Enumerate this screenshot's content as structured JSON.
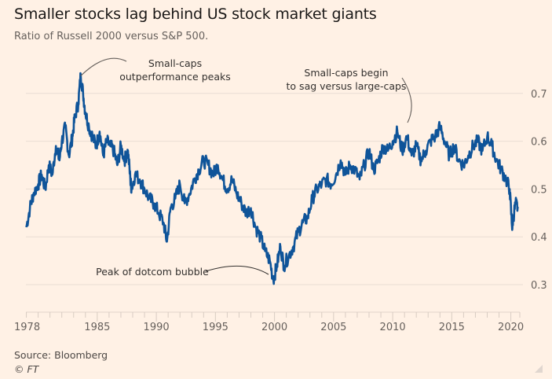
{
  "header": {
    "title": "Smaller stocks lag behind US stock market giants",
    "subtitle": "Ratio of Russell 2000 versus S&P 500."
  },
  "footer": {
    "source": "Source: Bloomberg",
    "copyright": "© FT"
  },
  "colors": {
    "background": "#fff1e5",
    "line": "#0f5499",
    "grid": "#e9ddd3",
    "annotation": "#33302e"
  },
  "chart_data": {
    "type": "line",
    "title": "Smaller stocks lag behind US stock market giants",
    "subtitle": "Ratio of Russell 2000 versus S&P 500.",
    "xlabel": "",
    "ylabel": "",
    "xlim": [
      1978,
      2020.8
    ],
    "ylim": [
      0.3,
      0.75
    ],
    "grid": true,
    "legend": "none",
    "y_axis_position": "right",
    "x_ticks": [
      1978,
      1985,
      1990,
      1995,
      2000,
      2005,
      2010,
      2015,
      2020
    ],
    "x_tick_labels": [
      "1978",
      "1985",
      "1990",
      "1995",
      "2000",
      "2005",
      "2010",
      "2015",
      "2020"
    ],
    "y_ticks": [
      0.3,
      0.4,
      0.5,
      0.6,
      0.7
    ],
    "y_tick_labels": [
      "0.3",
      "0.4",
      "0.5",
      "0.6",
      "0.7"
    ],
    "series": [
      {
        "name": "Russell 2000 / S&P 500",
        "x": [
          1979.0,
          1979.3,
          1979.6,
          1980.0,
          1980.3,
          1980.6,
          1980.9,
          1981.2,
          1981.5,
          1981.8,
          1982.0,
          1982.3,
          1982.6,
          1982.9,
          1983.1,
          1983.4,
          1983.6,
          1983.8,
          1984.0,
          1984.3,
          1984.6,
          1984.9,
          1985.2,
          1985.5,
          1985.8,
          1986.1,
          1986.4,
          1986.7,
          1987.0,
          1987.3,
          1987.6,
          1987.8,
          1987.9,
          1988.2,
          1988.6,
          1989.0,
          1989.4,
          1989.8,
          1990.2,
          1990.6,
          1990.9,
          1991.2,
          1991.6,
          1992.0,
          1992.4,
          1992.8,
          1993.2,
          1993.6,
          1994.0,
          1994.4,
          1994.8,
          1995.2,
          1995.6,
          1996.0,
          1996.4,
          1996.8,
          1997.2,
          1997.6,
          1998.0,
          1998.4,
          1998.8,
          1999.2,
          1999.6,
          1999.9,
          2000.2,
          2000.5,
          2000.8,
          2001.2,
          2001.6,
          2002.0,
          2002.4,
          2002.8,
          2003.2,
          2003.6,
          2004.0,
          2004.4,
          2004.8,
          2005.2,
          2005.6,
          2006.0,
          2006.4,
          2006.8,
          2007.2,
          2007.6,
          2008.0,
          2008.4,
          2008.8,
          2009.2,
          2009.6,
          2010.0,
          2010.4,
          2010.8,
          2011.2,
          2011.6,
          2012.0,
          2012.4,
          2012.8,
          2013.2,
          2013.6,
          2014.0,
          2014.4,
          2014.8,
          2015.2,
          2015.6,
          2016.0,
          2016.4,
          2016.8,
          2017.2,
          2017.6,
          2018.0,
          2018.4,
          2018.8,
          2019.2,
          2019.6,
          2019.9,
          2020.1,
          2020.2,
          2020.4,
          2020.6
        ],
        "y": [
          0.42,
          0.46,
          0.49,
          0.51,
          0.53,
          0.5,
          0.55,
          0.53,
          0.59,
          0.56,
          0.6,
          0.63,
          0.57,
          0.61,
          0.65,
          0.68,
          0.74,
          0.7,
          0.66,
          0.63,
          0.61,
          0.59,
          0.62,
          0.57,
          0.6,
          0.59,
          0.58,
          0.55,
          0.59,
          0.56,
          0.58,
          0.52,
          0.5,
          0.53,
          0.52,
          0.5,
          0.48,
          0.47,
          0.45,
          0.43,
          0.39,
          0.46,
          0.48,
          0.51,
          0.47,
          0.49,
          0.52,
          0.54,
          0.56,
          0.55,
          0.53,
          0.55,
          0.52,
          0.5,
          0.52,
          0.49,
          0.47,
          0.45,
          0.46,
          0.42,
          0.4,
          0.37,
          0.35,
          0.31,
          0.34,
          0.38,
          0.34,
          0.36,
          0.38,
          0.41,
          0.43,
          0.44,
          0.48,
          0.5,
          0.51,
          0.52,
          0.51,
          0.53,
          0.56,
          0.53,
          0.55,
          0.54,
          0.52,
          0.55,
          0.58,
          0.54,
          0.56,
          0.59,
          0.58,
          0.6,
          0.62,
          0.58,
          0.61,
          0.57,
          0.59,
          0.56,
          0.58,
          0.6,
          0.61,
          0.63,
          0.6,
          0.57,
          0.59,
          0.56,
          0.55,
          0.57,
          0.59,
          0.6,
          0.58,
          0.61,
          0.59,
          0.56,
          0.54,
          0.52,
          0.5,
          0.42,
          0.44,
          0.47,
          0.46
        ]
      }
    ],
    "annotations": [
      {
        "text": [
          "Small-caps",
          "outperformance peaks"
        ],
        "x": 1983.6,
        "y": 0.74
      },
      {
        "text": [
          "Small-caps begin",
          "to sag versus large-caps"
        ],
        "x": 2010.8,
        "y": 0.62
      },
      {
        "text": [
          "Peak of dotcom bubble"
        ],
        "x": 2000.0,
        "y": 0.33
      }
    ]
  }
}
